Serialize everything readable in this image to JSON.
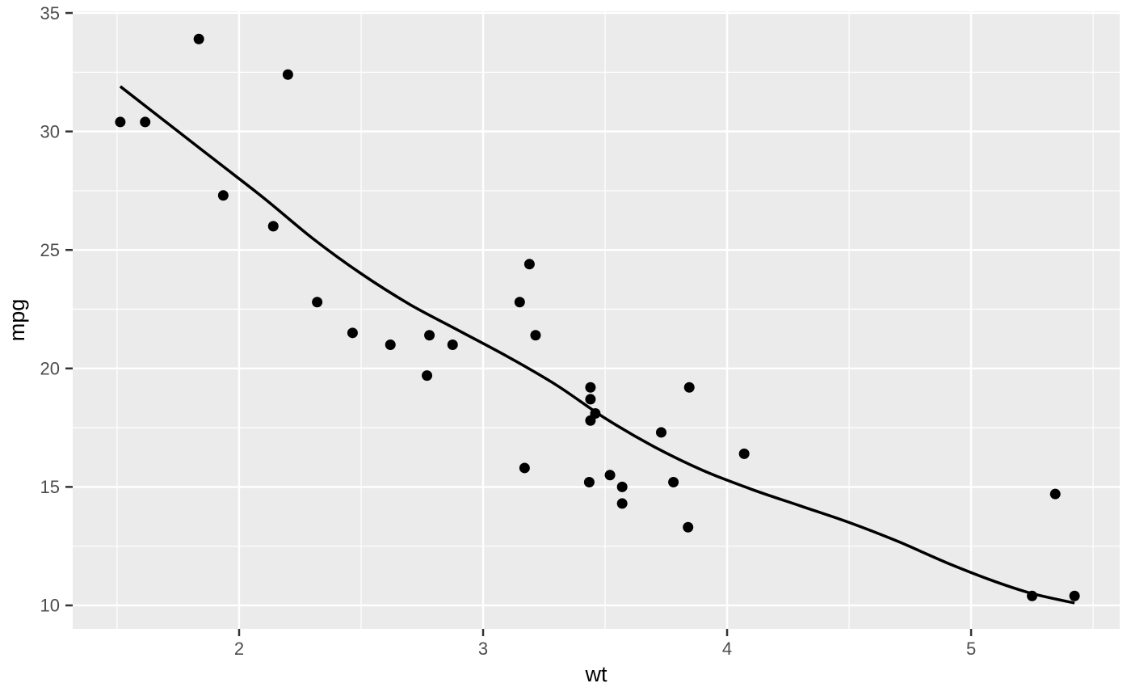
{
  "chart_data": {
    "type": "scatter",
    "title": "",
    "xlabel": "wt",
    "ylabel": "mpg",
    "xlim": [
      1.318,
      5.609
    ],
    "ylim": [
      9.01,
      35.07
    ],
    "x_ticks": [
      2,
      3,
      4,
      5
    ],
    "y_ticks": [
      10,
      15,
      20,
      25,
      30,
      35
    ],
    "x_minor_ticks": [
      1.5,
      2.5,
      3.5,
      4.5,
      5.5
    ],
    "y_minor_ticks": [
      12.5,
      17.5,
      22.5,
      27.5,
      32.5
    ],
    "grid": "major and minor, on",
    "legend": "none",
    "theme": "ggplot2 grey",
    "series": [
      {
        "name": "observations",
        "type": "scatter",
        "points": [
          [
            2.62,
            21.0
          ],
          [
            2.875,
            21.0
          ],
          [
            2.32,
            22.8
          ],
          [
            3.215,
            21.4
          ],
          [
            3.44,
            18.7
          ],
          [
            3.46,
            18.1
          ],
          [
            3.57,
            14.3
          ],
          [
            3.19,
            24.4
          ],
          [
            3.15,
            22.8
          ],
          [
            3.44,
            19.2
          ],
          [
            3.44,
            17.8
          ],
          [
            4.07,
            16.4
          ],
          [
            3.73,
            17.3
          ],
          [
            3.78,
            15.2
          ],
          [
            5.25,
            10.4
          ],
          [
            5.424,
            10.4
          ],
          [
            5.345,
            14.7
          ],
          [
            2.2,
            32.4
          ],
          [
            1.615,
            30.4
          ],
          [
            1.835,
            33.9
          ],
          [
            2.465,
            21.5
          ],
          [
            3.52,
            15.5
          ],
          [
            3.435,
            15.2
          ],
          [
            3.84,
            13.3
          ],
          [
            3.845,
            19.2
          ],
          [
            1.935,
            27.3
          ],
          [
            2.14,
            26.0
          ],
          [
            1.513,
            30.4
          ],
          [
            3.17,
            15.8
          ],
          [
            2.77,
            19.7
          ],
          [
            3.57,
            15.0
          ],
          [
            2.78,
            21.4
          ]
        ]
      },
      {
        "name": "loess-smooth",
        "type": "line",
        "points": [
          [
            1.513,
            31.9
          ],
          [
            1.7,
            30.4
          ],
          [
            1.9,
            28.8
          ],
          [
            2.1,
            27.2
          ],
          [
            2.3,
            25.5
          ],
          [
            2.5,
            24.0
          ],
          [
            2.7,
            22.7
          ],
          [
            2.9,
            21.6
          ],
          [
            3.1,
            20.5
          ],
          [
            3.3,
            19.3
          ],
          [
            3.5,
            17.9
          ],
          [
            3.7,
            16.7
          ],
          [
            3.9,
            15.7
          ],
          [
            4.1,
            14.9
          ],
          [
            4.3,
            14.2
          ],
          [
            4.5,
            13.5
          ],
          [
            4.7,
            12.7
          ],
          [
            4.9,
            11.8
          ],
          [
            5.1,
            11.0
          ],
          [
            5.25,
            10.5
          ],
          [
            5.424,
            10.1
          ]
        ]
      }
    ],
    "colors": {
      "panel_background": "#EBEBEB",
      "gridline": "#FFFFFF",
      "point": "#000000",
      "smooth_line": "#000000",
      "tick_label": "#4D4D4D",
      "tick_mark": "#333333",
      "axis_title": "#000000",
      "figure_background": "#FFFFFF"
    }
  }
}
